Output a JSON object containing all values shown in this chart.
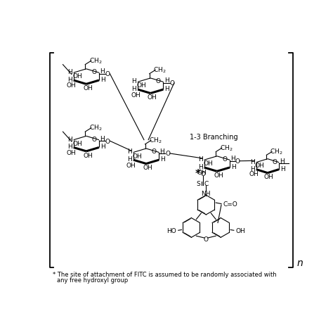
{
  "background_color": "#ffffff",
  "branch_label": "1-3 Branching",
  "footnote_line1": "* The site of attachment of FITC is assumed to be randomly associated with",
  "footnote_line2": "  any free hydroxyl group",
  "n_label": "n",
  "lw": 0.8,
  "lw_bold": 2.2,
  "fs": 6.5
}
